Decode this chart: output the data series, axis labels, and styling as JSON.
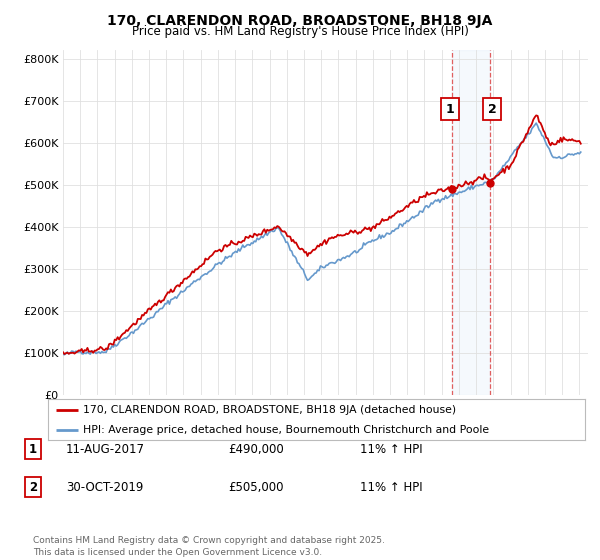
{
  "title": "170, CLARENDON ROAD, BROADSTONE, BH18 9JA",
  "subtitle": "Price paid vs. HM Land Registry's House Price Index (HPI)",
  "ylabel_ticks": [
    "£0",
    "£100K",
    "£200K",
    "£300K",
    "£400K",
    "£500K",
    "£600K",
    "£700K",
    "£800K"
  ],
  "ytick_values": [
    0,
    100000,
    200000,
    300000,
    400000,
    500000,
    600000,
    700000,
    800000
  ],
  "ylim": [
    0,
    820000
  ],
  "xlim_start": 1995.0,
  "xlim_end": 2025.5,
  "sale1_x": 2017.62,
  "sale1_y": 490000,
  "sale1_label": "1",
  "sale2_x": 2019.83,
  "sale2_y": 505000,
  "sale2_label": "2",
  "property_color": "#cc0000",
  "hpi_color": "#6699cc",
  "hpi_fill_color": "#cce0f5",
  "sale_vline_color": "#dd4444",
  "legend_property": "170, CLARENDON ROAD, BROADSTONE, BH18 9JA (detached house)",
  "legend_hpi": "HPI: Average price, detached house, Bournemouth Christchurch and Poole",
  "table_rows": [
    [
      "1",
      "11-AUG-2017",
      "£490,000",
      "11% ↑ HPI"
    ],
    [
      "2",
      "30-OCT-2019",
      "£505,000",
      "11% ↑ HPI"
    ]
  ],
  "footer": "Contains HM Land Registry data © Crown copyright and database right 2025.\nThis data is licensed under the Open Government Licence v3.0.",
  "background_color": "#ffffff",
  "grid_color": "#e0e0e0"
}
